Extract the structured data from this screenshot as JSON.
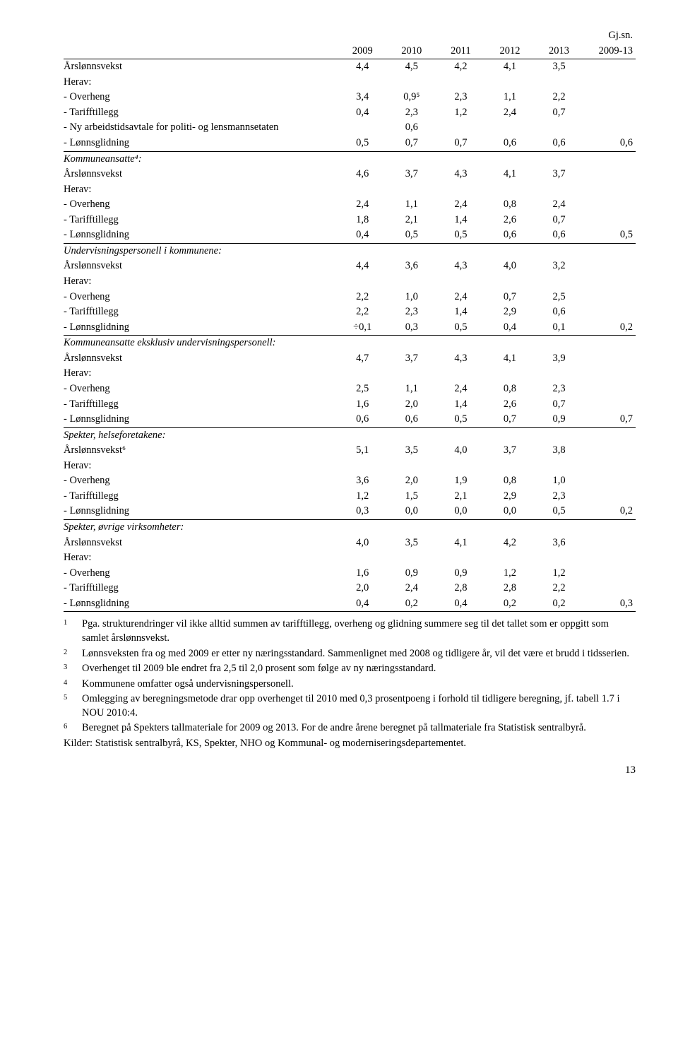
{
  "table": {
    "header": {
      "years": [
        "2009",
        "2010",
        "2011",
        "2012",
        "2013"
      ],
      "avg_top": "Gj.sn.",
      "avg_bottom": "2009-13"
    },
    "sections": [
      {
        "rows": [
          {
            "label": "Årslønnsvekst",
            "vals": [
              "4,4",
              "4,5",
              "4,2",
              "4,1",
              "3,5"
            ],
            "last": ""
          },
          {
            "label": "Herav:",
            "vals": [
              "",
              "",
              "",
              "",
              ""
            ],
            "last": ""
          },
          {
            "label": "- Overheng",
            "vals": [
              "3,4",
              "0,9⁵",
              "2,3",
              "1,1",
              "2,2"
            ],
            "last": ""
          },
          {
            "label": "- Tarifftillegg",
            "vals": [
              "0,4",
              "2,3",
              "1,2",
              "2,4",
              "0,7"
            ],
            "last": ""
          },
          {
            "label": "- Ny arbeidstidsavtale for politi- og lensmannsetaten",
            "vals": [
              "",
              "0,6",
              "",
              "",
              ""
            ],
            "last": ""
          },
          {
            "label": "- Lønnsglidning",
            "vals": [
              "0,5",
              "0,7",
              "0,7",
              "0,6",
              "0,6"
            ],
            "last": "0,6"
          }
        ]
      },
      {
        "title": "Kommuneansatte⁴:",
        "rows": [
          {
            "label": "Årslønnsvekst",
            "vals": [
              "4,6",
              "3,7",
              "4,3",
              "4,1",
              "3,7"
            ],
            "last": ""
          },
          {
            "label": "Herav:",
            "vals": [
              "",
              "",
              "",
              "",
              ""
            ],
            "last": ""
          },
          {
            "label": "- Overheng",
            "vals": [
              "2,4",
              "1,1",
              "2,4",
              "0,8",
              "2,4"
            ],
            "last": ""
          },
          {
            "label": "- Tarifftillegg",
            "vals": [
              "1,8",
              "2,1",
              "1,4",
              "2,6",
              "0,7"
            ],
            "last": ""
          },
          {
            "label": "- Lønnsglidning",
            "vals": [
              "0,4",
              "0,5",
              "0,5",
              "0,6",
              "0,6"
            ],
            "last": "0,5"
          }
        ]
      },
      {
        "title": "Undervisningspersonell i kommunene:",
        "rows": [
          {
            "label": "Årslønnsvekst",
            "vals": [
              "4,4",
              "3,6",
              "4,3",
              "4,0",
              "3,2"
            ],
            "last": ""
          },
          {
            "label": "Herav:",
            "vals": [
              "",
              "",
              "",
              "",
              ""
            ],
            "last": ""
          },
          {
            "label": "- Overheng",
            "vals": [
              "2,2",
              "1,0",
              "2,4",
              "0,7",
              "2,5"
            ],
            "last": ""
          },
          {
            "label": "- Tarifftillegg",
            "vals": [
              "2,2",
              "2,3",
              "1,4",
              "2,9",
              "0,6"
            ],
            "last": ""
          },
          {
            "label": "- Lønnsglidning",
            "vals": [
              "÷0,1",
              "0,3",
              "0,5",
              "0,4",
              "0,1"
            ],
            "last": "0,2"
          }
        ]
      },
      {
        "title": "Kommuneansatte eksklusiv undervisningspersonell:",
        "rows": [
          {
            "label": "Årslønnsvekst",
            "vals": [
              "4,7",
              "3,7",
              "4,3",
              "4,1",
              "3,9"
            ],
            "last": ""
          },
          {
            "label": "Herav:",
            "vals": [
              "",
              "",
              "",
              "",
              ""
            ],
            "last": ""
          },
          {
            "label": "- Overheng",
            "vals": [
              "2,5",
              "1,1",
              "2,4",
              "0,8",
              "2,3"
            ],
            "last": ""
          },
          {
            "label": "- Tarifftillegg",
            "vals": [
              "1,6",
              "2,0",
              "1,4",
              "2,6",
              "0,7"
            ],
            "last": ""
          },
          {
            "label": "- Lønnsglidning",
            "vals": [
              "0,6",
              "0,6",
              "0,5",
              "0,7",
              "0,9"
            ],
            "last": "0,7"
          }
        ]
      },
      {
        "title": "Spekter, helseforetakene:",
        "rows": [
          {
            "label": "Årslønnsvekst⁶",
            "vals": [
              "5,1",
              "3,5",
              "4,0",
              "3,7",
              "3,8"
            ],
            "last": ""
          },
          {
            "label": "Herav:",
            "vals": [
              "",
              "",
              "",
              "",
              ""
            ],
            "last": ""
          },
          {
            "label": "- Overheng",
            "vals": [
              "3,6",
              "2,0",
              "1,9",
              "0,8",
              "1,0"
            ],
            "last": ""
          },
          {
            "label": "- Tarifftillegg",
            "vals": [
              "1,2",
              "1,5",
              "2,1",
              "2,9",
              "2,3"
            ],
            "last": ""
          },
          {
            "label": "- Lønnsglidning",
            "vals": [
              "0,3",
              "0,0",
              "0,0",
              "0,0",
              "0,5"
            ],
            "last": "0,2"
          }
        ]
      },
      {
        "title": "Spekter, øvrige virksomheter:",
        "rows": [
          {
            "label": "Årslønnsvekst",
            "vals": [
              "4,0",
              "3,5",
              "4,1",
              "4,2",
              "3,6"
            ],
            "last": ""
          },
          {
            "label": "Herav:",
            "vals": [
              "",
              "",
              "",
              "",
              ""
            ],
            "last": ""
          },
          {
            "label": "- Overheng",
            "vals": [
              "1,6",
              "0,9",
              "0,9",
              "1,2",
              "1,2"
            ],
            "last": ""
          },
          {
            "label": "- Tarifftillegg",
            "vals": [
              "2,0",
              "2,4",
              "2,8",
              "2,8",
              "2,2"
            ],
            "last": ""
          },
          {
            "label": "- Lønnsglidning",
            "vals": [
              "0,4",
              "0,2",
              "0,4",
              "0,2",
              "0,2"
            ],
            "last": "0,3"
          }
        ],
        "final": true
      }
    ]
  },
  "footnotes": [
    {
      "mark": "1",
      "text": "Pga. strukturendringer vil ikke alltid summen av tarifftillegg, overheng og glidning summere seg til det tallet som er oppgitt som samlet årslønnsvekst."
    },
    {
      "mark": "2",
      "text": "Lønnsveksten fra og med 2009 er etter ny næringsstandard. Sammenlignet med 2008 og tidligere år, vil det være et brudd i tidsserien."
    },
    {
      "mark": "3",
      "text": "Overhenget til 2009 ble endret fra 2,5 til 2,0 prosent som følge av ny næringsstandard."
    },
    {
      "mark": "4",
      "text": "Kommunene omfatter også undervisningspersonell."
    },
    {
      "mark": "5",
      "text": "Omlegging av beregningsmetode drar opp overhenget til 2010 med 0,3 prosentpoeng i forhold til tidligere beregning, jf. tabell 1.7 i NOU 2010:4."
    },
    {
      "mark": "6",
      "text": "Beregnet på Spekters tallmateriale for 2009 og 2013. For de andre årene beregnet på tallmateriale fra Statistisk sentralbyrå."
    }
  ],
  "sources": "Kilder: Statistisk sentralbyrå, KS, Spekter, NHO og Kommunal- og moderniseringsdepartementet.",
  "page_number": "13"
}
